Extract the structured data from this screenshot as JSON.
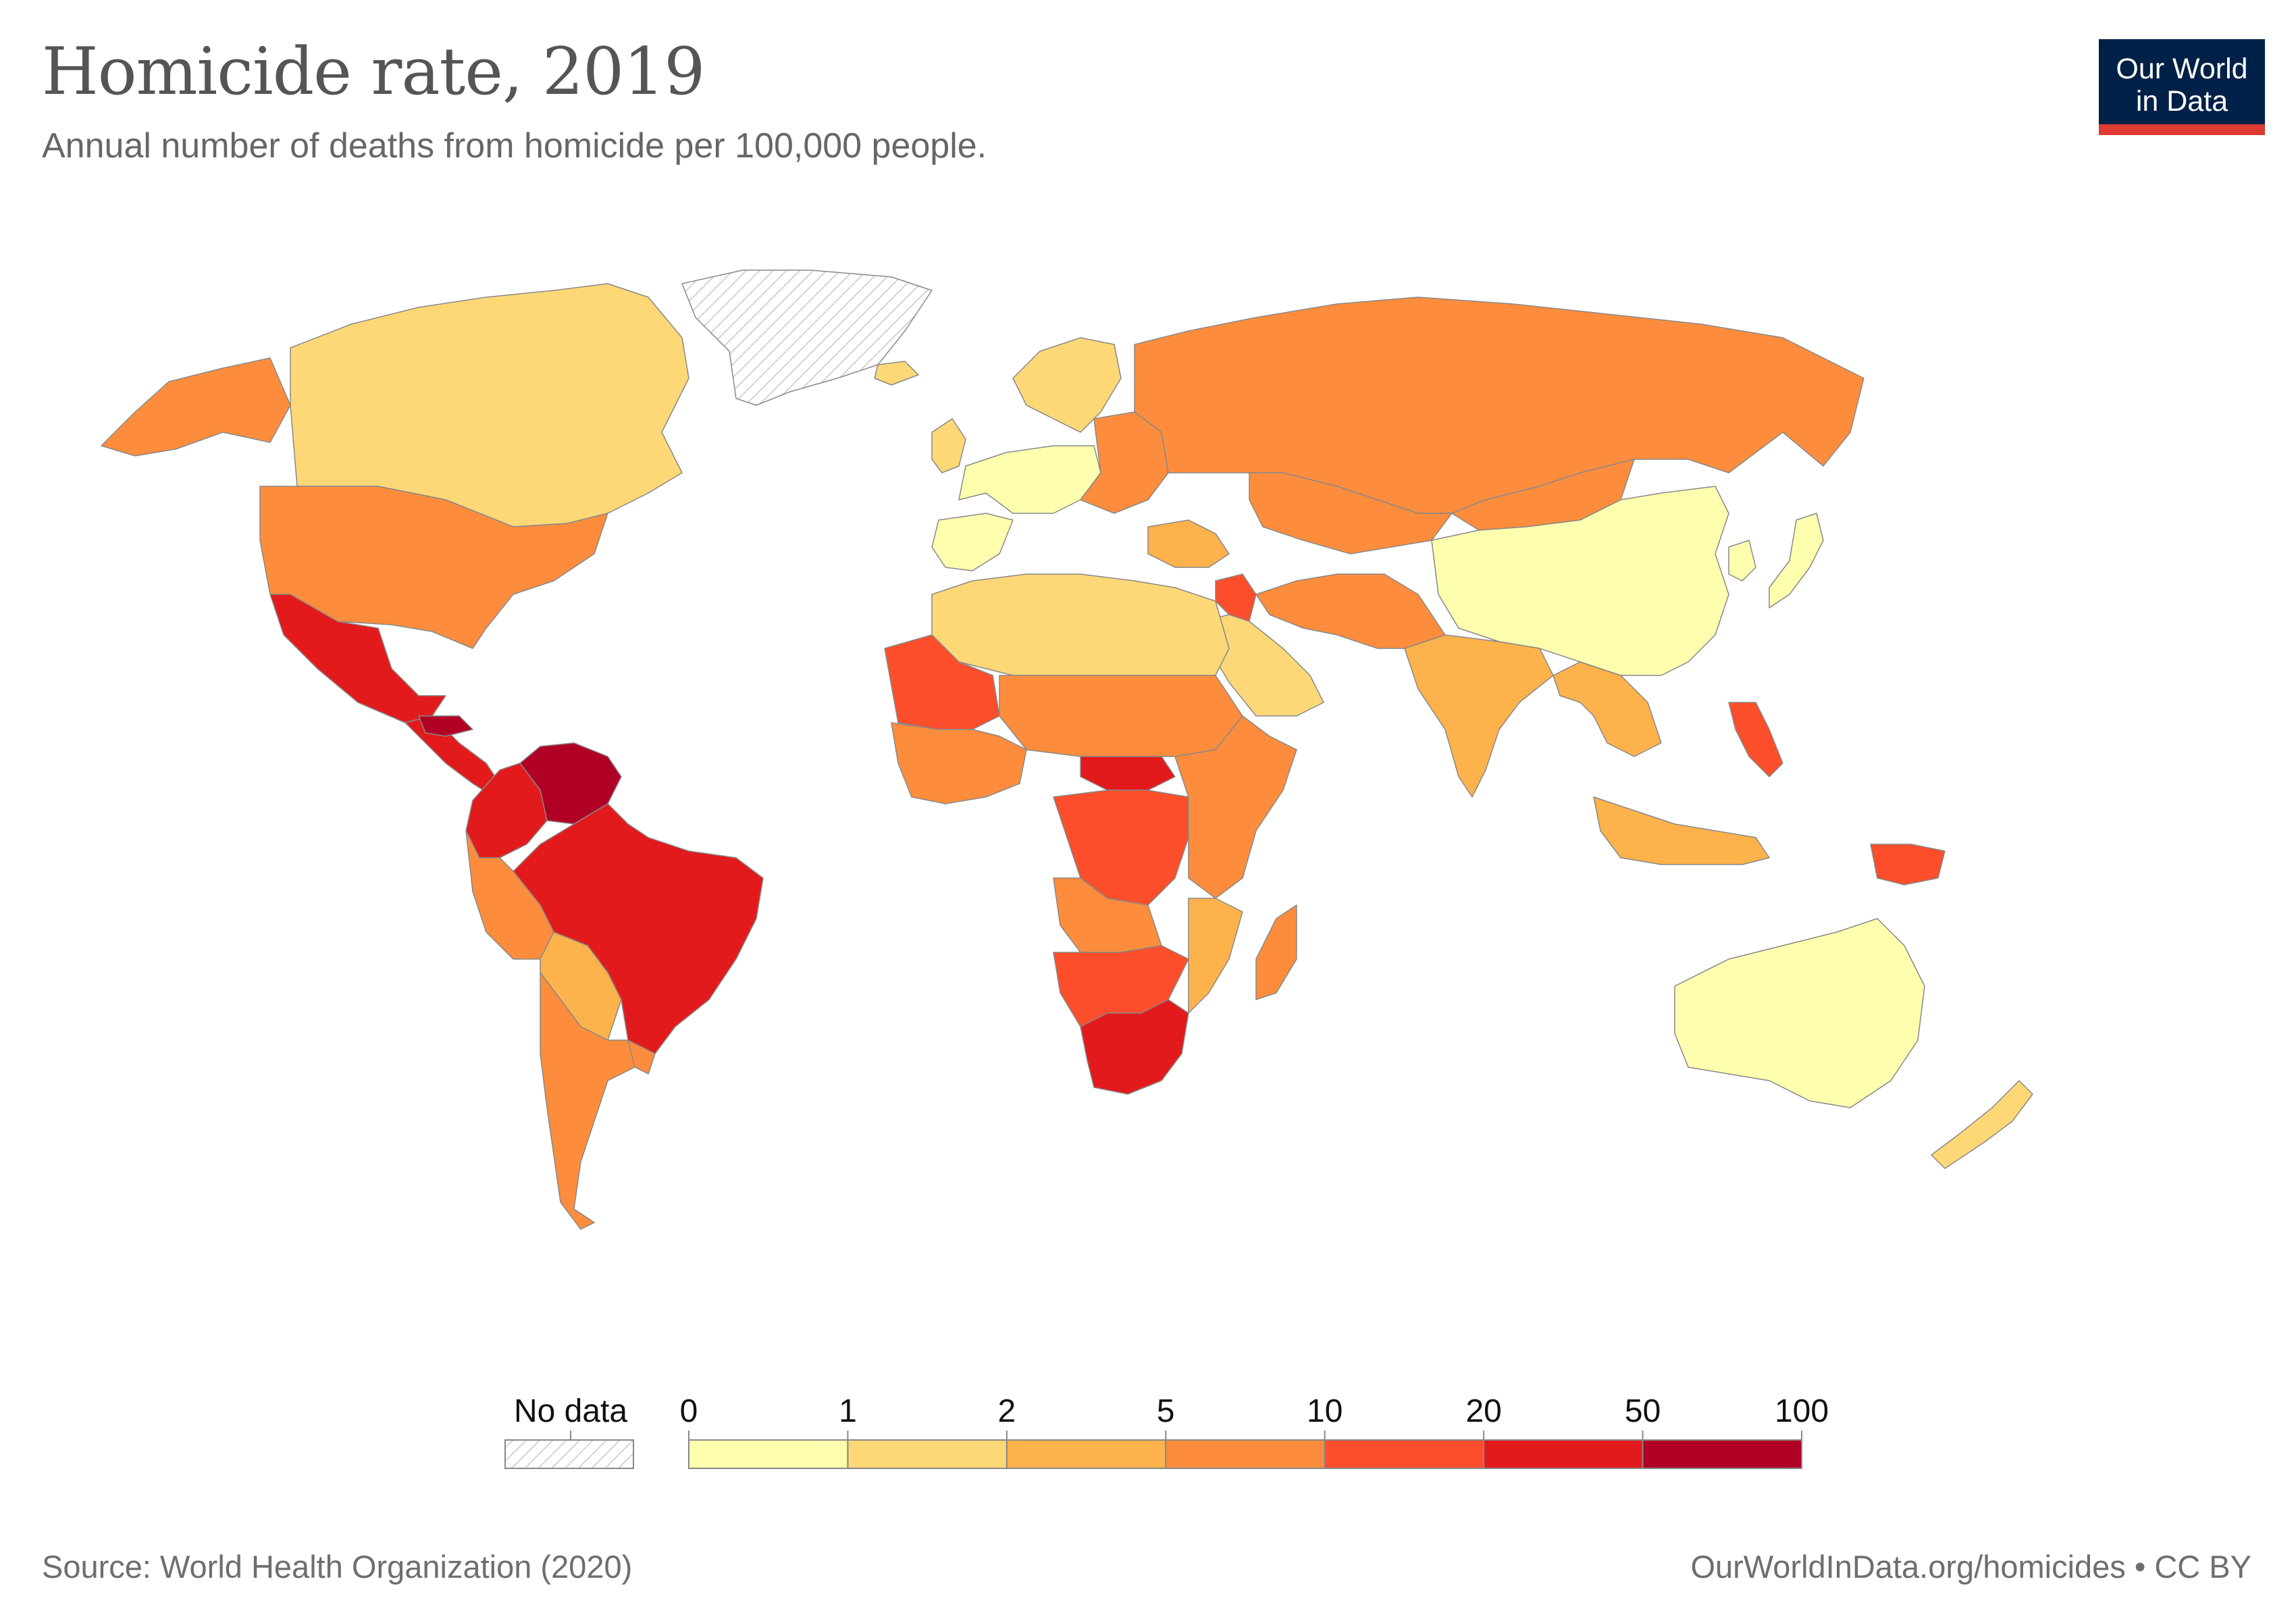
{
  "header": {
    "title": "Homicide rate, 2019",
    "subtitle": "Annual number of deaths from homicide per 100,000 people."
  },
  "logo": {
    "line1": "Our World",
    "line2": "in Data",
    "bg_color": "#002147",
    "bar_color": "#dc3a33"
  },
  "legend": {
    "no_data_label": "No data",
    "bins": [
      {
        "from": 0,
        "to": 1,
        "color": "#feffae"
      },
      {
        "from": 1,
        "to": 2,
        "color": "#fed877"
      },
      {
        "from": 2,
        "to": 5,
        "color": "#feb24c"
      },
      {
        "from": 5,
        "to": 10,
        "color": "#fd8d3c"
      },
      {
        "from": 10,
        "to": 20,
        "color": "#fc4e2a"
      },
      {
        "from": 20,
        "to": 50,
        "color": "#e31a1c"
      },
      {
        "from": 50,
        "to": 100,
        "color": "#b10026"
      }
    ],
    "tick_labels": [
      "0",
      "1",
      "2",
      "5",
      "10",
      "20",
      "50",
      "100"
    ]
  },
  "map": {
    "regions": [
      {
        "name": "alaska",
        "color": "#fd8d3c"
      },
      {
        "name": "canada",
        "color": "#fed877"
      },
      {
        "name": "greenland",
        "color": "nodata"
      },
      {
        "name": "united-states",
        "color": "#fd8d3c"
      },
      {
        "name": "mexico",
        "color": "#e31a1c"
      },
      {
        "name": "central-america",
        "color": "#e31a1c"
      },
      {
        "name": "honduras",
        "color": "#b10026"
      },
      {
        "name": "venezuela",
        "color": "#b10026"
      },
      {
        "name": "colombia",
        "color": "#e31a1c"
      },
      {
        "name": "brazil",
        "color": "#e31a1c"
      },
      {
        "name": "peru",
        "color": "#fd8d3c"
      },
      {
        "name": "bolivia-paraguay",
        "color": "#feb24c"
      },
      {
        "name": "argentina-chile",
        "color": "#fd8d3c"
      },
      {
        "name": "uruguay",
        "color": "#fd8d3c"
      },
      {
        "name": "west-europe",
        "color": "#feffae"
      },
      {
        "name": "iberia",
        "color": "#feffae"
      },
      {
        "name": "eastern-europe",
        "color": "#fd8d3c"
      },
      {
        "name": "scandinavia",
        "color": "#fed877"
      },
      {
        "name": "uk-ireland",
        "color": "#fed877"
      },
      {
        "name": "iceland",
        "color": "#fed877"
      },
      {
        "name": "russia",
        "color": "#fd8d3c"
      },
      {
        "name": "kazakhstan",
        "color": "#fd8d3c"
      },
      {
        "name": "mongolia",
        "color": "#fd8d3c"
      },
      {
        "name": "china",
        "color": "#feffae"
      },
      {
        "name": "japan",
        "color": "#feffae"
      },
      {
        "name": "korea",
        "color": "#feffae"
      },
      {
        "name": "middle-east",
        "color": "#feb24c"
      },
      {
        "name": "iraq",
        "color": "#fc4e2a"
      },
      {
        "name": "saudi-arabia",
        "color": "#fed877"
      },
      {
        "name": "iran-afghanistan-pakistan",
        "color": "#fd8d3c"
      },
      {
        "name": "india",
        "color": "#feb24c"
      },
      {
        "name": "southeast-asia",
        "color": "#feb24c"
      },
      {
        "name": "indonesia",
        "color": "#feb24c"
      },
      {
        "name": "philippines",
        "color": "#fc4e2a"
      },
      {
        "name": "papua-new-guinea",
        "color": "#fc4e2a"
      },
      {
        "name": "australia",
        "color": "#feffae"
      },
      {
        "name": "new-zealand",
        "color": "#fed877"
      },
      {
        "name": "north-africa",
        "color": "#fed877"
      },
      {
        "name": "mauritania-mali",
        "color": "#fc4e2a"
      },
      {
        "name": "west-africa",
        "color": "#fd8d3c"
      },
      {
        "name": "sahel",
        "color": "#fd8d3c"
      },
      {
        "name": "central-african-republic",
        "color": "#e31a1c"
      },
      {
        "name": "dr-congo",
        "color": "#fc4e2a"
      },
      {
        "name": "east-africa",
        "color": "#fd8d3c"
      },
      {
        "name": "angola",
        "color": "#fd8d3c"
      },
      {
        "name": "namibia-botswana",
        "color": "#fc4e2a"
      },
      {
        "name": "south-africa",
        "color": "#e31a1c"
      },
      {
        "name": "mozambique",
        "color": "#feb24c"
      },
      {
        "name": "madagascar",
        "color": "#fd8d3c"
      }
    ]
  },
  "footer": {
    "source": "Source: World Health Organization (2020)",
    "credit": "OurWorldInData.org/homicides • CC BY"
  }
}
